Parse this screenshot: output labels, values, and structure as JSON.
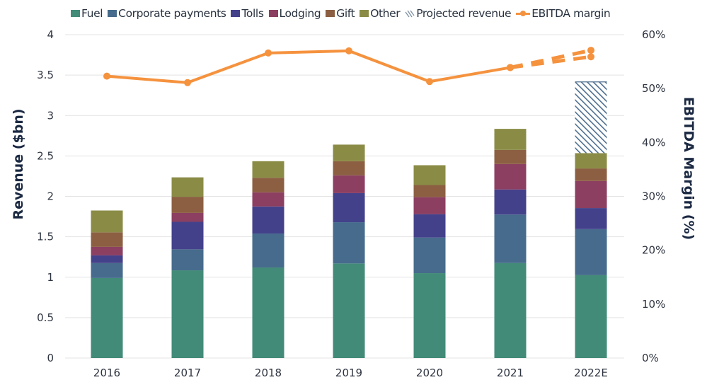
{
  "chart_data": {
    "type": "bar",
    "subtype": "stacked-bar-with-line",
    "title": "",
    "categories": [
      "2016",
      "2017",
      "2018",
      "2019",
      "2020",
      "2021",
      "2022E"
    ],
    "series": [
      {
        "name": "Fuel",
        "color": "#428b78",
        "values": [
          0.99,
          1.085,
          1.12,
          1.17,
          1.05,
          1.175,
          1.025
        ]
      },
      {
        "name": "Corporate payments",
        "color": "#466b8c",
        "values": [
          0.185,
          0.26,
          0.42,
          0.51,
          0.44,
          0.6,
          0.57
        ]
      },
      {
        "name": "Tolls",
        "color": "#44418b",
        "values": [
          0.095,
          0.34,
          0.335,
          0.36,
          0.29,
          0.31,
          0.26
        ]
      },
      {
        "name": "Lodging",
        "color": "#8c3f61",
        "values": [
          0.105,
          0.11,
          0.175,
          0.22,
          0.21,
          0.315,
          0.335
        ]
      },
      {
        "name": "Gift",
        "color": "#8c5f42",
        "values": [
          0.18,
          0.2,
          0.18,
          0.175,
          0.15,
          0.175,
          0.155
        ]
      },
      {
        "name": "Other",
        "color": "#8a8c46",
        "values": [
          0.27,
          0.24,
          0.205,
          0.205,
          0.245,
          0.26,
          0.19
        ]
      },
      {
        "name": "Projected revenue",
        "color": "#4f6f8f",
        "pattern": "hatch",
        "values": [
          0,
          0,
          0,
          0,
          0,
          0,
          0.885
        ]
      }
    ],
    "line_series": [
      {
        "name": "EBITDA margin",
        "color": "#f5923e",
        "axis": "right",
        "values": [
          52.3,
          51.1,
          56.6,
          57.0,
          51.3,
          53.9,
          null
        ]
      },
      {
        "name": "EBITDA margin projection high",
        "color": "#f5923e",
        "axis": "right",
        "dashed": true,
        "from": "2021",
        "values": [
          null,
          null,
          null,
          null,
          null,
          53.9,
          57.1
        ]
      },
      {
        "name": "EBITDA margin projection low",
        "color": "#f5923e",
        "axis": "right",
        "dashed": true,
        "from": "2021",
        "values": [
          null,
          null,
          null,
          null,
          null,
          53.9,
          55.9
        ]
      }
    ],
    "legend": [
      "Fuel",
      "Corporate payments",
      "Tolls",
      "Lodging",
      "Gift",
      "Other",
      "Projected revenue",
      "EBITDA margin"
    ],
    "legend_position": "top",
    "xlabel": "",
    "ylabel": "Revenue ($bn)",
    "ylim": [
      0,
      4
    ],
    "yticks": [
      "0",
      "0.5",
      "1",
      "1.5",
      "2",
      "2.5",
      "3",
      "3.5",
      "4"
    ],
    "ytick_values": [
      0,
      0.5,
      1,
      1.5,
      2,
      2.5,
      3,
      3.5,
      4
    ],
    "y2label": "EBITDA  Margin (%)",
    "y2lim": [
      0,
      60
    ],
    "y2ticks": [
      "0%",
      "10%",
      "20%",
      "30%",
      "40%",
      "50%",
      "60%"
    ],
    "y2tick_values": [
      0,
      10,
      20,
      30,
      40,
      50,
      60
    ],
    "grid": true
  }
}
